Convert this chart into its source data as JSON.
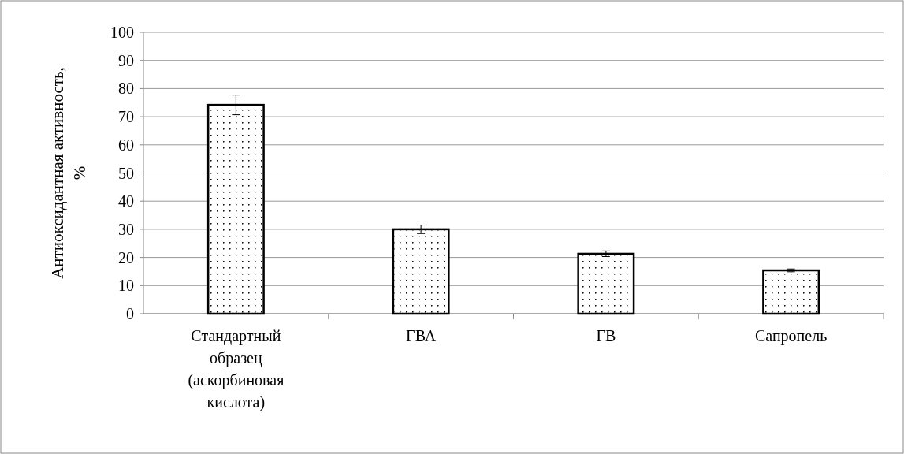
{
  "chart_data": {
    "type": "bar",
    "ylabel": "Антиоксидантная активность, %",
    "categories": [
      "Стандартный образец (аскорбиновая кислота)",
      "ГВА",
      "ГВ",
      "Сапропель"
    ],
    "values": [
      74.2,
      30,
      21.3,
      15.4
    ],
    "errors": [
      3.5,
      1.5,
      1,
      0.5
    ],
    "color": "#000000",
    "ylim": [
      0,
      100
    ],
    "yticks": [
      0,
      10,
      20,
      30,
      40,
      50,
      60,
      70,
      80,
      90,
      100
    ],
    "grid": "y"
  }
}
